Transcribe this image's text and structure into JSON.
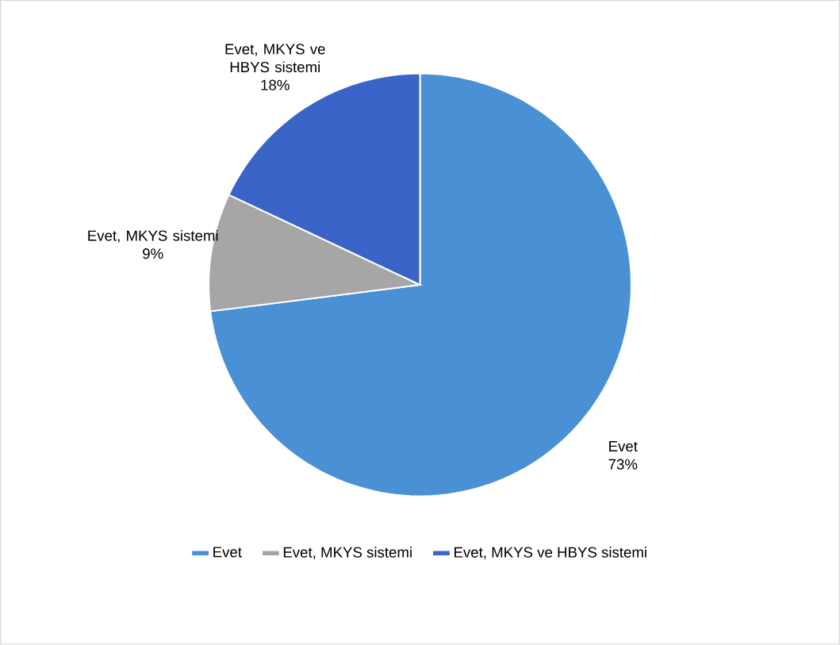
{
  "chart_data": {
    "type": "pie",
    "categories": [
      "Evet",
      "Evet, MKYS sistemi",
      "Evet, MKYS ve HBYS sistemi"
    ],
    "values": [
      73,
      9,
      18
    ],
    "value_labels": [
      "73%",
      "9%",
      "18%"
    ],
    "colors": [
      "#4a90d4",
      "#a6a6a6",
      "#3a64c8"
    ],
    "legend": "bottom"
  }
}
